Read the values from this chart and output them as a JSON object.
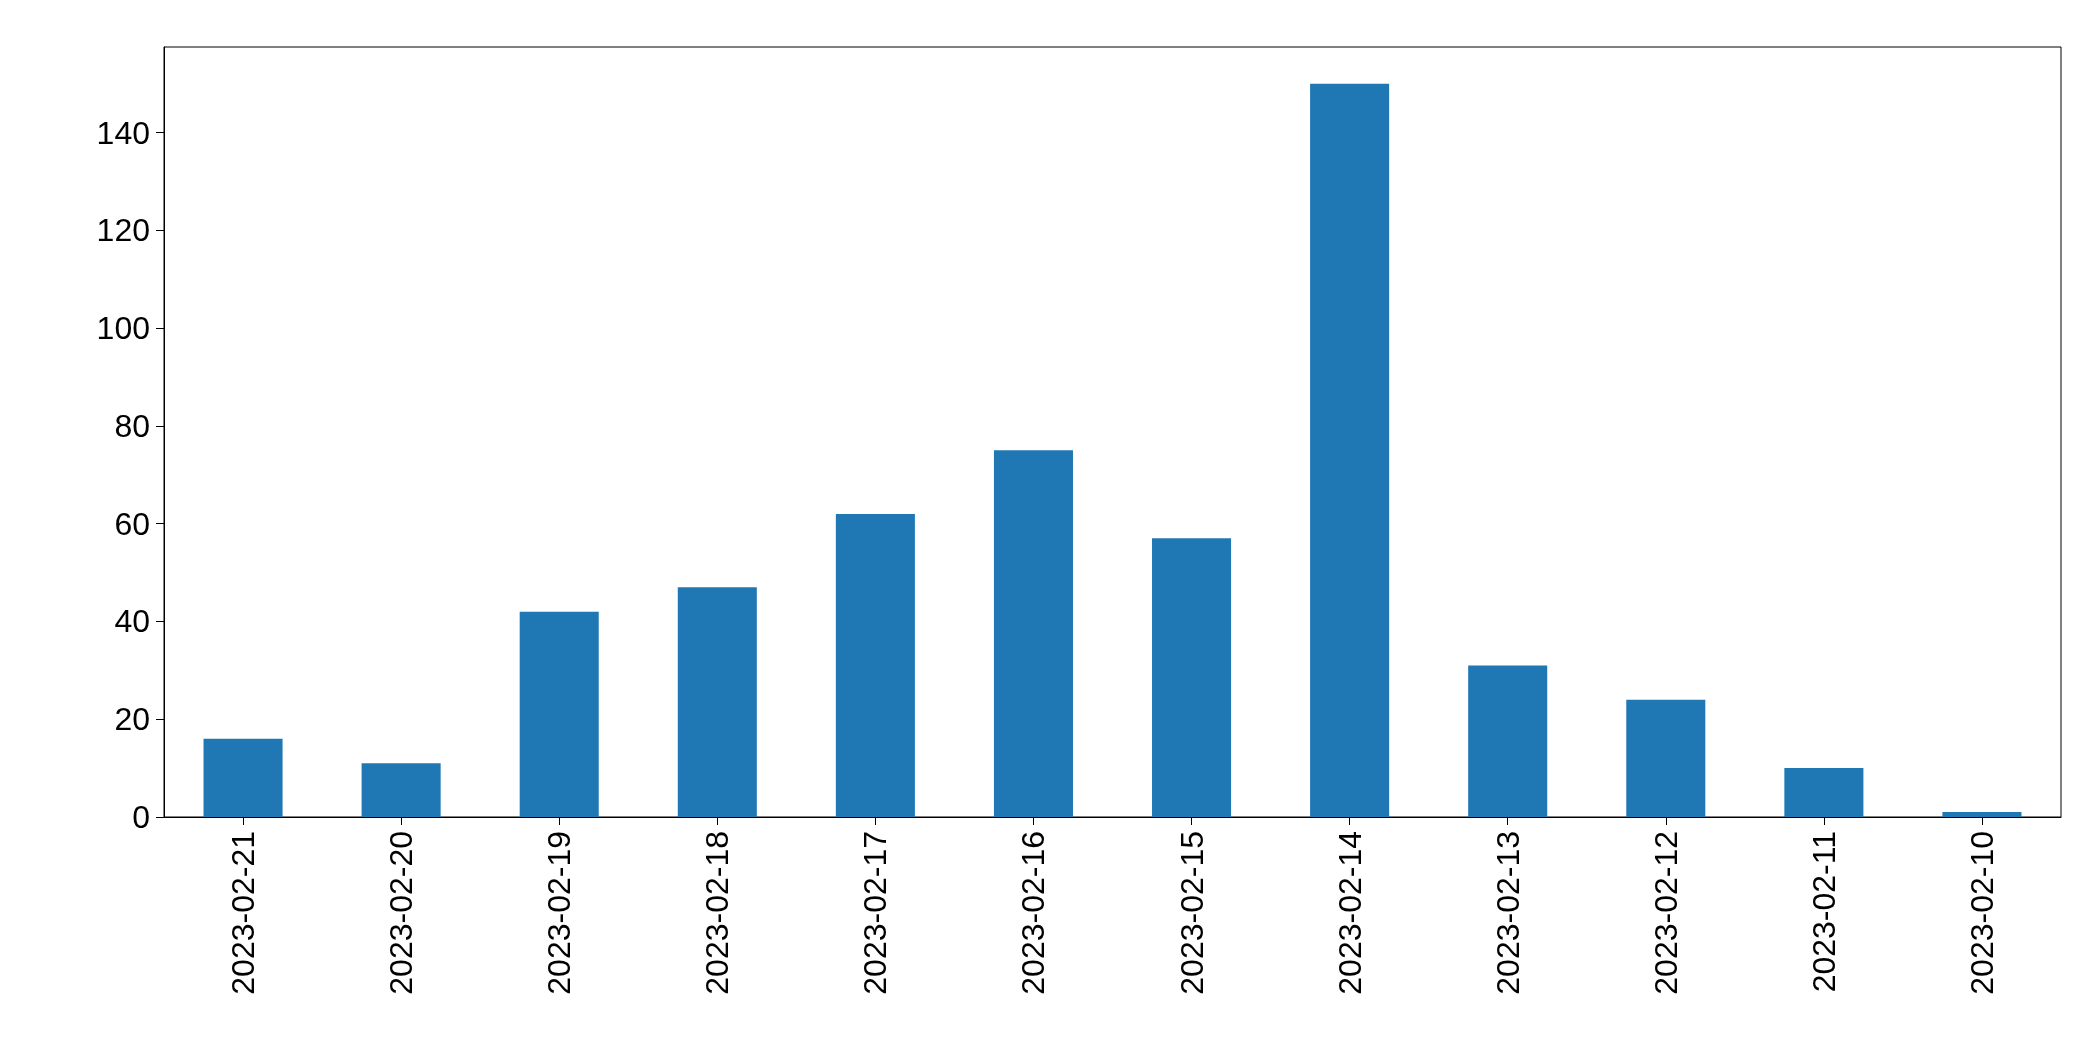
{
  "chart_data": {
    "type": "bar",
    "categories": [
      "2023-02-21",
      "2023-02-20",
      "2023-02-19",
      "2023-02-18",
      "2023-02-17",
      "2023-02-16",
      "2023-02-15",
      "2023-02-14",
      "2023-02-13",
      "2023-02-12",
      "2023-02-11",
      "2023-02-10"
    ],
    "values": [
      16,
      11,
      42,
      47,
      62,
      75,
      57,
      150,
      31,
      24,
      10,
      1
    ],
    "color": "#1f77b4",
    "ylim": [
      0,
      157.5
    ],
    "yticks": [
      0,
      20,
      40,
      60,
      80,
      100,
      120,
      140
    ],
    "grid": false
  }
}
